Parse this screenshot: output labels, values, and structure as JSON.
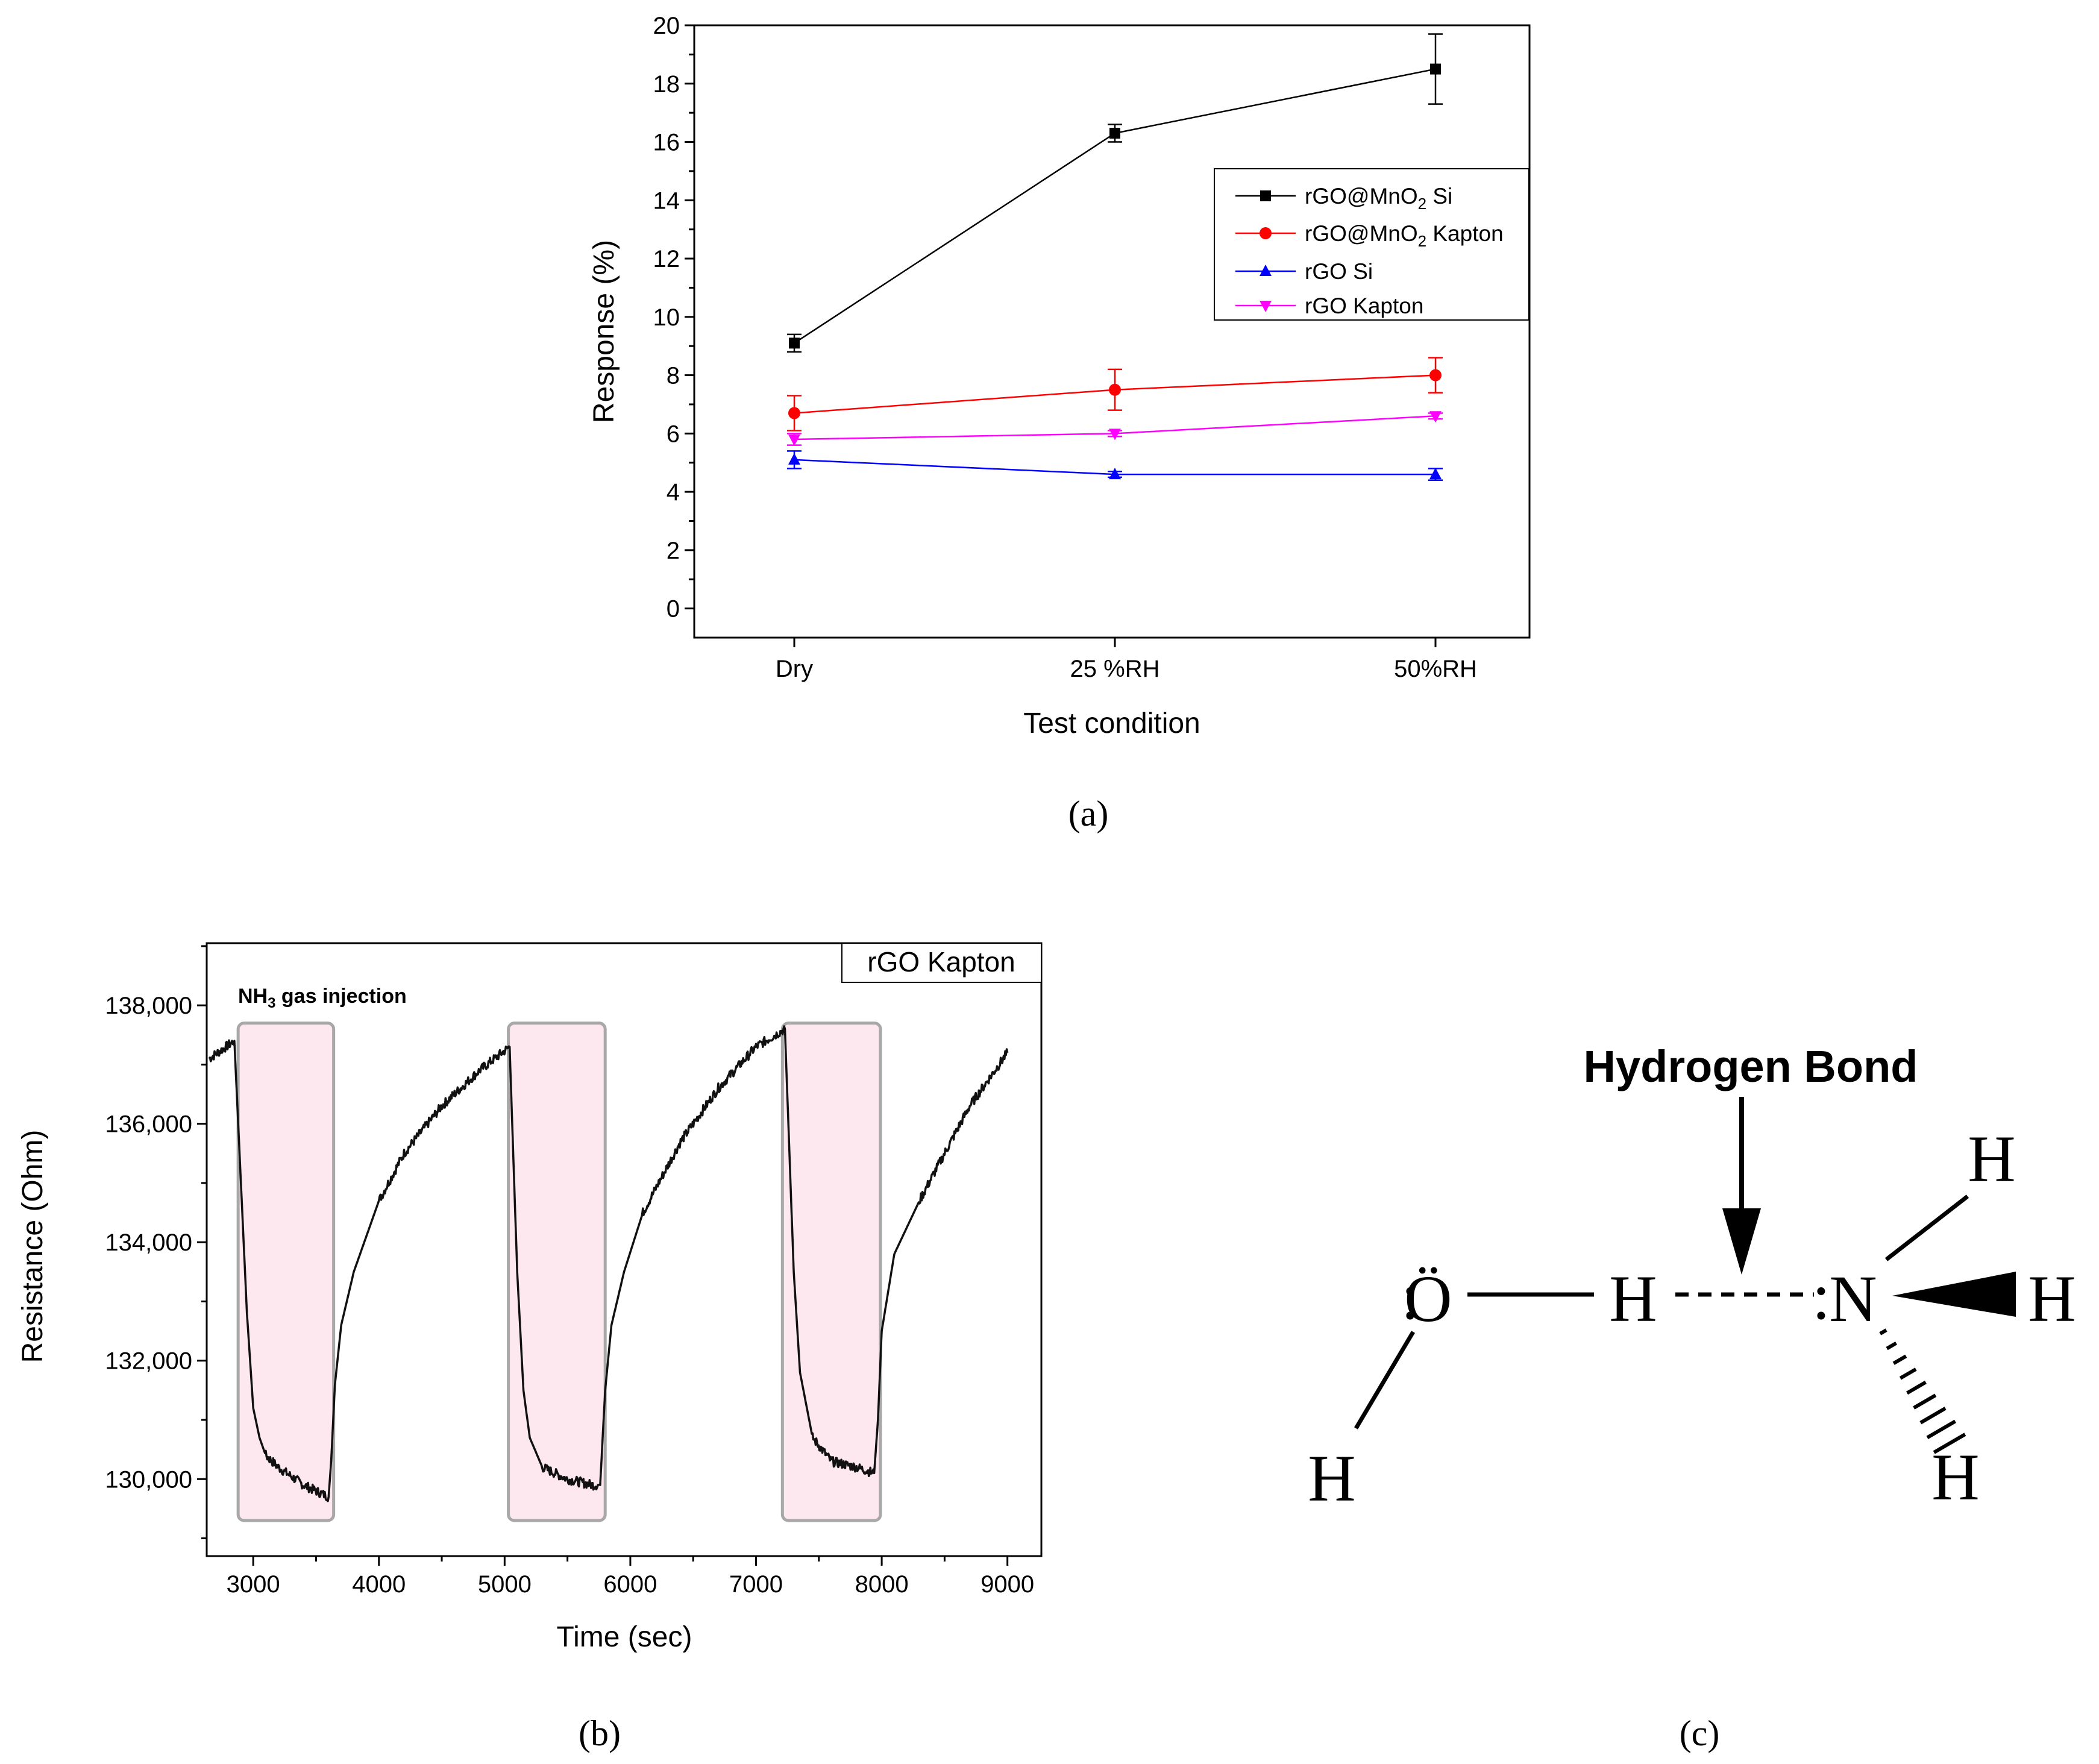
{
  "chart_data": [
    {
      "type": "line",
      "panel_label": "(a)",
      "xlabel": "Test condition",
      "ylabel": "Response (%)",
      "categories": [
        "Dry",
        "25 %RH",
        "50%RH"
      ],
      "ylim": [
        -1,
        20
      ],
      "yticks": [
        "0",
        "2",
        "4",
        "6",
        "8",
        "10",
        "12",
        "14",
        "16",
        "18",
        "20"
      ],
      "legend_position": "upper-right",
      "series": [
        {
          "name": "rGO@MnO2 Si",
          "label_main": "rGO@MnO",
          "label_sub": "2",
          "label_tail": " Si",
          "color": "#000000",
          "marker": "square",
          "values": [
            9.1,
            16.3,
            18.5
          ],
          "errors": [
            0.3,
            0.3,
            1.2
          ]
        },
        {
          "name": "rGO@MnO2 Kapton",
          "label_main": "rGO@MnO",
          "label_sub": "2",
          "label_tail": " Kapton",
          "color": "#ff0000",
          "marker": "circle",
          "values": [
            6.7,
            7.5,
            8.0
          ],
          "errors": [
            0.6,
            0.7,
            0.6
          ]
        },
        {
          "name": "rGO Si",
          "label_main": "rGO Si",
          "label_sub": "",
          "label_tail": "",
          "color": "#0000ff",
          "marker": "triangle-up",
          "values": [
            5.1,
            4.6,
            4.6
          ],
          "errors": [
            0.3,
            0.1,
            0.2
          ]
        },
        {
          "name": "rGO Kapton",
          "label_main": "rGO Kapton",
          "label_sub": "",
          "label_tail": "",
          "color": "#ff00ff",
          "marker": "triangle-down",
          "values": [
            5.8,
            6.0,
            6.6
          ],
          "errors": [
            0.2,
            0.1,
            0.1
          ]
        }
      ]
    },
    {
      "type": "line",
      "panel_label": "(b)",
      "xlabel": "Time (sec)",
      "ylabel": "Resistance (Ohm)",
      "xlim": [
        2630,
        9270
      ],
      "ylim": [
        128700,
        139050
      ],
      "xticks": [
        3000,
        4000,
        5000,
        6000,
        7000,
        8000,
        9000
      ],
      "yticks": [
        130000,
        132000,
        134000,
        136000,
        138000
      ],
      "ytick_labels": [
        "130,000",
        "132,000",
        "134,000",
        "136,000",
        "138,000"
      ],
      "legend": "rGO Kapton",
      "annotation": {
        "main": "NH",
        "sub": "3",
        "tail": " gas injection"
      },
      "injection_windows": [
        [
          2880,
          3640
        ],
        [
          5030,
          5800
        ],
        [
          7210,
          7990
        ]
      ],
      "series_keypoints": {
        "name": "rGO Kapton",
        "color": "#000000",
        "x": [
          2650,
          2850,
          2950,
          3000,
          3050,
          3100,
          3200,
          3400,
          3600,
          3620,
          3650,
          3700,
          3800,
          4000,
          4200,
          4500,
          4800,
          5040,
          5100,
          5150,
          5200,
          5300,
          5500,
          5700,
          5760,
          5800,
          5850,
          5950,
          6100,
          6400,
          6700,
          7000,
          7230,
          7300,
          7350,
          7450,
          7600,
          7800,
          7940,
          7970,
          8000,
          8100,
          8300,
          8500,
          8700,
          8900,
          9000
        ],
        "y": [
          137100,
          137400,
          132800,
          131200,
          130700,
          130400,
          130200,
          129900,
          129700,
          130300,
          131600,
          132600,
          133500,
          134700,
          135500,
          136300,
          136900,
          137300,
          133500,
          131500,
          130700,
          130200,
          130000,
          129900,
          129900,
          131500,
          132600,
          133500,
          134500,
          135700,
          136600,
          137300,
          137600,
          133500,
          131800,
          130700,
          130300,
          130200,
          130100,
          131000,
          132500,
          133800,
          134700,
          135500,
          136300,
          136900,
          137200
        ]
      }
    }
  ],
  "panel_c": {
    "panel_label": "(c)",
    "title": "Hydrogen Bond",
    "title_color": "#22ee22",
    "atoms": {
      "oxygen": "Ö",
      "nitrogen": "N",
      "h_shared": "H",
      "h_oxygen": "H",
      "h_top": "H",
      "h_right": "H",
      "h_bottom": "H"
    },
    "lone_pair_symbol": ":"
  }
}
